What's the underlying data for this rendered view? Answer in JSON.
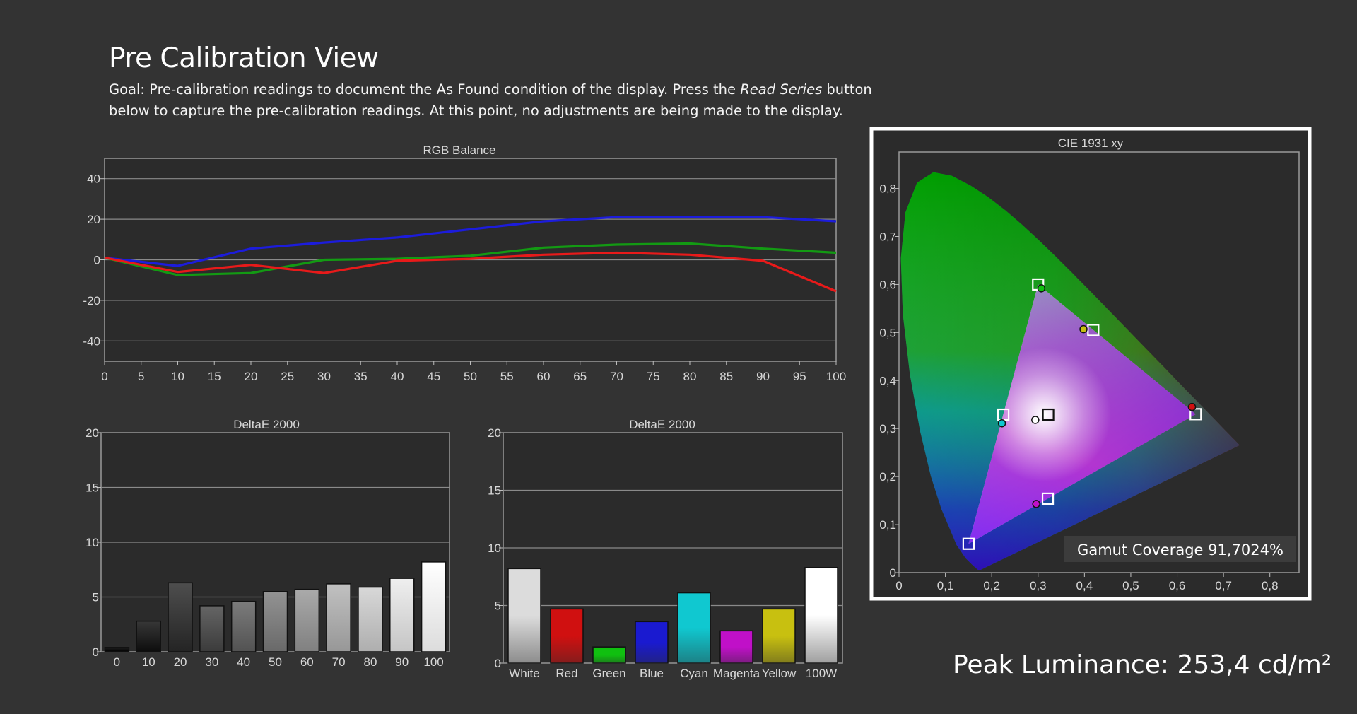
{
  "page": {
    "title": "Pre Calibration View",
    "goal_prefix": "Goal: Pre-calibration readings to document the As Found condition of the display. Press the ",
    "goal_button": "Read Series",
    "goal_suffix": " button below to capture the pre-calibration readings. At this point, no adjustments are being made to the display.",
    "peak_label": "Peak Luminance: ",
    "peak_value": "253,4 cd/m²"
  },
  "colors": {
    "background": "#333333",
    "plot_background": "#2b2b2b",
    "red_series": "#e81a1a",
    "green_series": "#139a13",
    "blue_series": "#1c1cdc"
  },
  "chart_data": [
    {
      "id": "rgb_balance",
      "type": "line",
      "title": "RGB Balance",
      "x": [
        0,
        10,
        20,
        30,
        40,
        50,
        60,
        70,
        80,
        90,
        100
      ],
      "xticks": [
        "0",
        "5",
        "10",
        "15",
        "20",
        "25",
        "30",
        "35",
        "40",
        "45",
        "50",
        "55",
        "60",
        "65",
        "70",
        "75",
        "80",
        "85",
        "90",
        "95",
        "100"
      ],
      "xlim": [
        0,
        100
      ],
      "ylim": [
        -50,
        50
      ],
      "yticks": [
        "40",
        "20",
        "0",
        "-20",
        "-40"
      ],
      "grid": true,
      "series": [
        {
          "color": "#1c1cdc",
          "values": [
            1,
            -3,
            5.5,
            8.5,
            11,
            15,
            19,
            21,
            21,
            21,
            19
          ]
        },
        {
          "color": "#139a13",
          "values": [
            1,
            -7.5,
            -6.5,
            0,
            0.5,
            2,
            6,
            7.5,
            8,
            5.5,
            3.5
          ]
        },
        {
          "color": "#e81a1a",
          "values": [
            1,
            -6,
            -2.5,
            -6.5,
            -0.5,
            0.5,
            2.5,
            3.5,
            2.5,
            -0.5,
            -15.5
          ]
        }
      ]
    },
    {
      "id": "deltae_grayscale",
      "type": "bar",
      "title": "DeltaE 2000",
      "categories": [
        "0",
        "10",
        "20",
        "30",
        "40",
        "50",
        "60",
        "70",
        "80",
        "90",
        "100"
      ],
      "values": [
        0.4,
        2.8,
        6.3,
        4.2,
        4.6,
        5.5,
        5.7,
        6.2,
        5.9,
        6.7,
        8.2
      ],
      "ylim": [
        0,
        20
      ],
      "yticks": [
        "20",
        "15",
        "10",
        "5",
        "0"
      ],
      "grid": true
    },
    {
      "id": "deltae_colors",
      "type": "bar",
      "title": "DeltaE 2000",
      "categories": [
        "White",
        "Red",
        "Green",
        "Blue",
        "Cyan",
        "Magenta",
        "Yellow",
        "100W"
      ],
      "values": [
        8.2,
        4.7,
        1.4,
        3.6,
        6.1,
        2.8,
        4.7,
        8.3
      ],
      "colors": [
        "#dcdcdc",
        "#d01010",
        "#10c010",
        "#1a1ad0",
        "#10c8d0",
        "#c010c8",
        "#c8c010",
        "#ffffff"
      ],
      "ylim": [
        0,
        20
      ],
      "yticks": [
        "20",
        "15",
        "10",
        "5",
        "0"
      ],
      "grid": true
    },
    {
      "id": "cie_1931",
      "type": "scatter",
      "title": "CIE 1931 xy",
      "xlim": [
        0,
        0.85
      ],
      "ylim": [
        0,
        0.85
      ],
      "xticks": [
        "0",
        "0,1",
        "0,2",
        "0,3",
        "0,4",
        "0,5",
        "0,6",
        "0,7",
        "0,8"
      ],
      "yticks": [
        "0,8",
        "0,7",
        "0,6",
        "0,5",
        "0,4",
        "0,3",
        "0,2",
        "0,1",
        "0"
      ],
      "targets": [
        {
          "x": 0.64,
          "y": 0.33
        },
        {
          "x": 0.3,
          "y": 0.6
        },
        {
          "x": 0.15,
          "y": 0.06
        },
        {
          "x": 0.225,
          "y": 0.329
        },
        {
          "x": 0.321,
          "y": 0.154
        },
        {
          "x": 0.419,
          "y": 0.505
        },
        {
          "x": 0.3127,
          "y": 0.329
        }
      ],
      "measured": [
        {
          "x": 0.632,
          "y": 0.345,
          "color": "#d01010"
        },
        {
          "x": 0.307,
          "y": 0.592,
          "color": "#10c010"
        },
        {
          "x": 0.222,
          "y": 0.311,
          "color": "#10c8d0"
        },
        {
          "x": 0.296,
          "y": 0.143,
          "color": "#c010c8"
        },
        {
          "x": 0.398,
          "y": 0.507,
          "color": "#c8c010"
        },
        {
          "x": 0.294,
          "y": 0.318,
          "color": "#ffffff"
        }
      ],
      "annotation": "Gamut Coverage 91,7024%"
    }
  ]
}
